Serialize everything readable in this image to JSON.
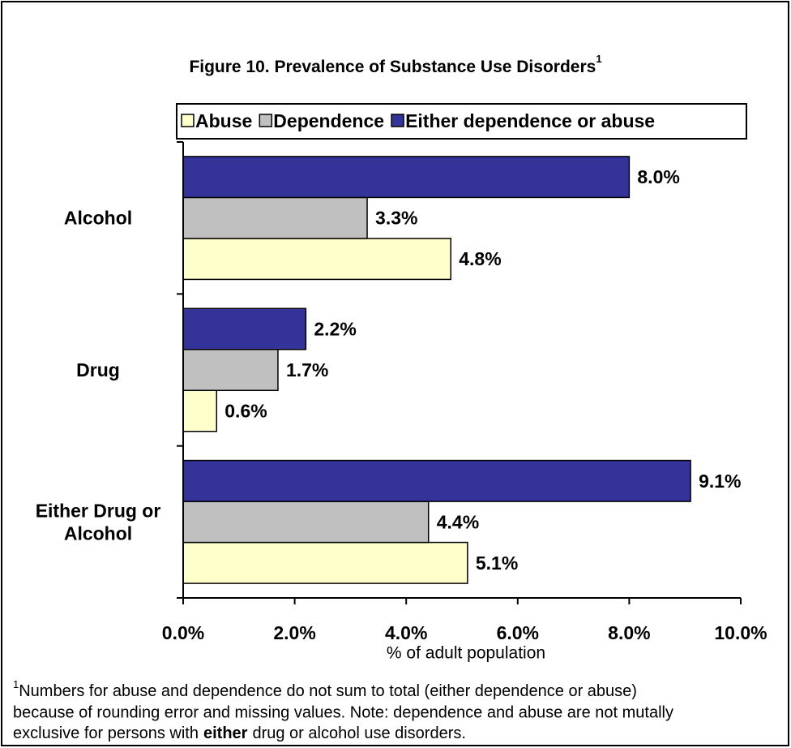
{
  "chart_data": {
    "type": "barh",
    "title": "Figure 10.  Prevalence of Substance Use Disorders",
    "title_sup": "1",
    "categories": [
      "Alcohol",
      "Drug",
      "Either Drug or Alcohol"
    ],
    "series": [
      {
        "name": "Abuse",
        "color": "#ffffcc",
        "values": [
          4.8,
          0.6,
          5.1
        ],
        "value_labels": [
          "4.8%",
          "0.6%",
          "5.1%"
        ]
      },
      {
        "name": "Dependence",
        "color": "#c0c0c0",
        "values": [
          3.3,
          1.7,
          4.4
        ],
        "value_labels": [
          "3.3%",
          "1.7%",
          "4.4%"
        ]
      },
      {
        "name": "Either dependence or abuse",
        "color": "#333399",
        "values": [
          8.0,
          2.2,
          9.1
        ],
        "value_labels": [
          "8.0%",
          "2.2%",
          "9.1%"
        ]
      }
    ],
    "xlim": [
      0,
      10
    ],
    "xticks": [
      {
        "value": 0,
        "label": "0.0%"
      },
      {
        "value": 2,
        "label": "2.0%"
      },
      {
        "value": 4,
        "label": "4.0%"
      },
      {
        "value": 6,
        "label": "6.0%"
      },
      {
        "value": 8,
        "label": "8.0%"
      },
      {
        "value": 10,
        "label": "10.0%"
      }
    ],
    "xlabel": "% of adult population",
    "legend": "top",
    "footnote": {
      "marker": "1",
      "line1": "Numbers for abuse and dependence do not sum to total (either dependence or abuse)",
      "line2": "because of rounding error and missing values. Note:  dependence and abuse are not mutally",
      "line3_start": "exclusive for persons with",
      "line3_bold": "either",
      "line3_end": "drug or alcohol use disorders."
    }
  }
}
